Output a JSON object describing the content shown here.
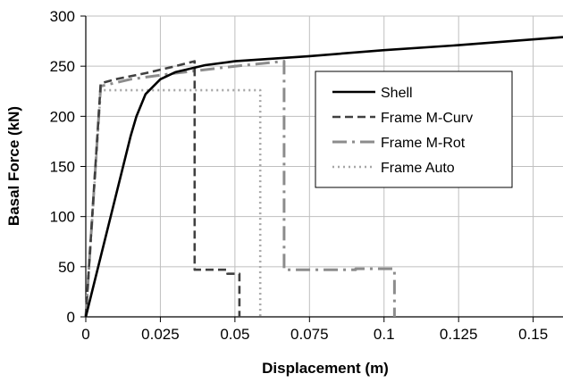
{
  "chart_data": {
    "type": "line",
    "xlabel": "Displacement (m)",
    "ylabel": "Basal Force (kN)",
    "xlim": [
      0,
      0.16
    ],
    "ylim": [
      0,
      300
    ],
    "x_ticks": [
      0,
      0.025,
      0.05,
      0.075,
      0.1,
      0.125,
      0.15
    ],
    "x_tick_labels": [
      "0",
      "0.025",
      "0.05",
      "0.075",
      "0.1",
      "0.125",
      "0.15"
    ],
    "y_ticks": [
      0,
      50,
      100,
      150,
      200,
      250,
      300
    ],
    "y_tick_labels": [
      "0",
      "50",
      "100",
      "150",
      "200",
      "250",
      "300"
    ],
    "grid": true,
    "legend_position": "right",
    "series": [
      {
        "name": "Shell",
        "style": "solid",
        "color": "#000000",
        "points": [
          [
            0,
            0
          ],
          [
            0.005,
            60
          ],
          [
            0.01,
            120
          ],
          [
            0.015,
            180
          ],
          [
            0.017,
            200
          ],
          [
            0.02,
            222
          ],
          [
            0.025,
            237
          ],
          [
            0.03,
            244
          ],
          [
            0.04,
            251
          ],
          [
            0.05,
            255
          ],
          [
            0.075,
            260
          ],
          [
            0.1,
            266
          ],
          [
            0.125,
            271
          ],
          [
            0.16,
            279
          ]
        ]
      },
      {
        "name": "Frame M-Curv",
        "style": "dashed",
        "color": "#404040",
        "points": [
          [
            0,
            0
          ],
          [
            0.005,
            233
          ],
          [
            0.01,
            237
          ],
          [
            0.02,
            243
          ],
          [
            0.03,
            250
          ],
          [
            0.0365,
            255
          ],
          [
            0.0365,
            47
          ],
          [
            0.0475,
            47
          ],
          [
            0.0475,
            43
          ],
          [
            0.0515,
            43
          ],
          [
            0.0515,
            0
          ]
        ]
      },
      {
        "name": "Frame M-Rot",
        "style": "dashdot",
        "color": "#8c8c8c",
        "points": [
          [
            0,
            0
          ],
          [
            0.005,
            230
          ],
          [
            0.015,
            237
          ],
          [
            0.03,
            243
          ],
          [
            0.05,
            250
          ],
          [
            0.0665,
            255
          ],
          [
            0.0665,
            47
          ],
          [
            0.0905,
            47
          ],
          [
            0.0905,
            48
          ],
          [
            0.1035,
            48
          ],
          [
            0.1035,
            0
          ]
        ]
      },
      {
        "name": "Frame Auto",
        "style": "dotted",
        "color": "#a6a6a6",
        "points": [
          [
            0,
            0
          ],
          [
            0.005,
            226
          ],
          [
            0.0585,
            226
          ],
          [
            0.0585,
            0
          ]
        ]
      }
    ]
  }
}
